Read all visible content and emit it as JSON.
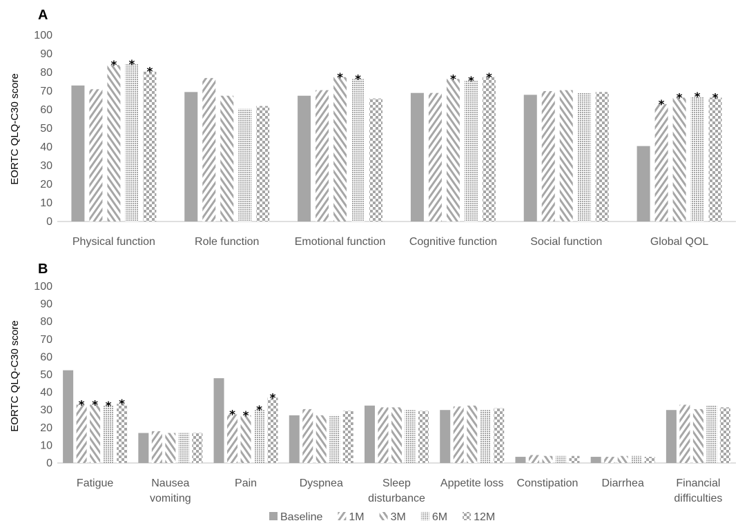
{
  "colors": {
    "bar": "#a6a6a6",
    "axis": "#bfbfbf",
    "text": "#595959",
    "background": "#ffffff"
  },
  "legend": {
    "placement": "bottom",
    "entries": [
      {
        "label": "Baseline",
        "pattern": "solid"
      },
      {
        "label": "1M",
        "pattern": "forward-diagonal"
      },
      {
        "label": "3M",
        "pattern": "backward-diagonal"
      },
      {
        "label": "6M",
        "pattern": "dense-check"
      },
      {
        "label": "12M",
        "pattern": "large-check"
      }
    ]
  },
  "chart_data": [
    {
      "type": "bar",
      "panel": "A",
      "ylabel": "EORTC QLQ-C30 score",
      "ylim": [
        0,
        100
      ],
      "yticks": [
        0,
        10,
        20,
        30,
        40,
        50,
        60,
        70,
        80,
        90,
        100
      ],
      "grid": false,
      "categories": [
        {
          "lines": [
            "Physical function"
          ]
        },
        {
          "lines": [
            "Role function"
          ]
        },
        {
          "lines": [
            "Emotional function"
          ]
        },
        {
          "lines": [
            "Cognitive function"
          ]
        },
        {
          "lines": [
            "Social function"
          ]
        },
        {
          "lines": [
            "Global QOL"
          ]
        }
      ],
      "series": [
        {
          "name": "Baseline",
          "values": [
            73,
            69.5,
            67.5,
            69,
            68,
            40.5
          ]
        },
        {
          "name": "1M",
          "values": [
            71,
            77,
            70.5,
            69,
            70,
            63
          ]
        },
        {
          "name": "3M",
          "values": [
            84,
            67.5,
            77.5,
            76.5,
            70.5,
            66.5
          ]
        },
        {
          "name": "6M",
          "values": [
            84.5,
            60.5,
            76.5,
            75.5,
            69,
            67
          ]
        },
        {
          "name": "12M",
          "values": [
            80.5,
            62,
            66,
            77.5,
            69.5,
            66.5
          ]
        }
      ],
      "significance": [
        [
          false,
          false,
          true,
          true,
          true
        ],
        [
          false,
          false,
          false,
          false,
          false
        ],
        [
          false,
          false,
          true,
          true,
          false
        ],
        [
          false,
          false,
          true,
          true,
          true
        ],
        [
          false,
          false,
          false,
          false,
          false
        ],
        [
          false,
          true,
          true,
          true,
          true
        ]
      ],
      "marker": "*"
    },
    {
      "type": "bar",
      "panel": "B",
      "ylabel": "EORTC QLQ-C30 score",
      "ylim": [
        0,
        100
      ],
      "yticks": [
        0,
        10,
        20,
        30,
        40,
        50,
        60,
        70,
        80,
        90,
        100
      ],
      "grid": false,
      "categories": [
        {
          "lines": [
            "Fatigue"
          ]
        },
        {
          "lines": [
            "Nausea",
            "vomiting"
          ]
        },
        {
          "lines": [
            "Pain"
          ]
        },
        {
          "lines": [
            "Dyspnea"
          ]
        },
        {
          "lines": [
            "Sleep",
            "disturbance"
          ]
        },
        {
          "lines": [
            "Appetite loss"
          ]
        },
        {
          "lines": [
            "Constipation"
          ]
        },
        {
          "lines": [
            "Diarrhea"
          ]
        },
        {
          "lines": [
            "Financial",
            "difficulties"
          ]
        }
      ],
      "series": [
        {
          "name": "Baseline",
          "values": [
            52.5,
            17,
            48,
            27,
            32.5,
            30,
            3.5,
            3.5,
            30
          ]
        },
        {
          "name": "1M",
          "values": [
            33,
            18,
            27.5,
            30.5,
            31.5,
            32,
            4.5,
            3.5,
            33
          ]
        },
        {
          "name": "3M",
          "values": [
            33,
            17,
            27,
            27,
            31.5,
            32.5,
            4,
            4,
            30.5
          ]
        },
        {
          "name": "6M",
          "values": [
            32.5,
            17,
            30,
            27,
            30,
            30,
            4,
            4,
            32.5
          ]
        },
        {
          "name": "12M",
          "values": [
            33.5,
            17,
            37,
            29.5,
            29.5,
            31,
            4,
            3.5,
            31.5
          ]
        }
      ],
      "significance": [
        [
          false,
          true,
          true,
          true,
          true
        ],
        [
          false,
          false,
          false,
          false,
          false
        ],
        [
          false,
          true,
          true,
          true,
          true
        ],
        [
          false,
          false,
          false,
          false,
          false
        ],
        [
          false,
          false,
          false,
          false,
          false
        ],
        [
          false,
          false,
          false,
          false,
          false
        ],
        [
          false,
          false,
          false,
          false,
          false
        ],
        [
          false,
          false,
          false,
          false,
          false
        ],
        [
          false,
          false,
          false,
          false,
          false
        ]
      ],
      "marker": "*"
    }
  ]
}
